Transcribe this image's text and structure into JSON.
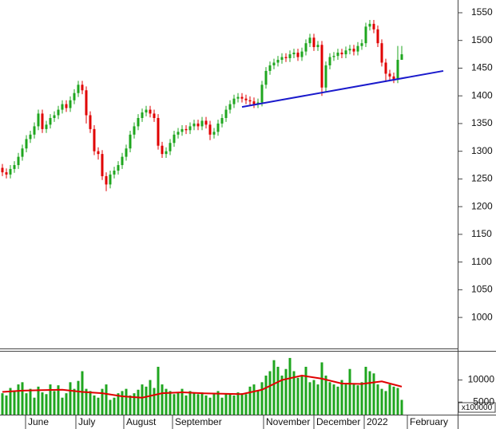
{
  "chart_data": [
    {
      "type": "candlestick",
      "open": [
        1270,
        1262,
        1258,
        1268,
        1275,
        1290,
        1305,
        1322,
        1330,
        1345,
        1368,
        1340,
        1348,
        1360,
        1365,
        1375,
        1385,
        1378,
        1392,
        1405,
        1420,
        1410,
        1365,
        1340,
        1300,
        1295,
        1255,
        1240,
        1258,
        1265,
        1275,
        1290,
        1305,
        1330,
        1345,
        1360,
        1370,
        1375,
        1368,
        1360,
        1310,
        1295,
        1300,
        1315,
        1330,
        1335,
        1340,
        1338,
        1345,
        1350,
        1345,
        1355,
        1348,
        1330,
        1335,
        1350,
        1360,
        1375,
        1385,
        1395,
        1398,
        1395,
        1392,
        1390,
        1385,
        1388,
        1420,
        1445,
        1455,
        1460,
        1465,
        1470,
        1468,
        1475,
        1478,
        1470,
        1480,
        1495,
        1505,
        1488,
        1492,
        1415,
        1455,
        1470,
        1472,
        1478,
        1475,
        1482,
        1485,
        1480,
        1490,
        1495,
        1525,
        1530,
        1520,
        1495,
        1460,
        1440,
        1435,
        1430,
        1465
      ],
      "high": [
        1277,
        1269,
        1275,
        1282,
        1297,
        1312,
        1329,
        1337,
        1352,
        1375,
        1375,
        1355,
        1367,
        1372,
        1382,
        1392,
        1392,
        1399,
        1412,
        1427,
        1427,
        1417,
        1372,
        1347,
        1307,
        1302,
        1262,
        1265,
        1272,
        1282,
        1297,
        1312,
        1337,
        1352,
        1367,
        1377,
        1382,
        1382,
        1375,
        1367,
        1317,
        1307,
        1322,
        1337,
        1342,
        1347,
        1347,
        1352,
        1357,
        1357,
        1362,
        1362,
        1355,
        1342,
        1357,
        1367,
        1382,
        1392,
        1402,
        1405,
        1405,
        1402,
        1399,
        1397,
        1395,
        1427,
        1452,
        1462,
        1467,
        1472,
        1477,
        1477,
        1482,
        1485,
        1485,
        1487,
        1502,
        1512,
        1512,
        1499,
        1499,
        1462,
        1477,
        1479,
        1485,
        1485,
        1489,
        1492,
        1492,
        1497,
        1502,
        1532,
        1537,
        1537,
        1527,
        1502,
        1467,
        1447,
        1442,
        1490,
        1490
      ],
      "low": [
        1255,
        1251,
        1251,
        1261,
        1268,
        1283,
        1298,
        1315,
        1323,
        1338,
        1333,
        1333,
        1341,
        1353,
        1358,
        1368,
        1371,
        1371,
        1385,
        1398,
        1403,
        1350,
        1333,
        1293,
        1285,
        1248,
        1228,
        1233,
        1251,
        1258,
        1268,
        1283,
        1298,
        1323,
        1338,
        1353,
        1363,
        1361,
        1353,
        1303,
        1288,
        1288,
        1293,
        1308,
        1323,
        1328,
        1331,
        1331,
        1338,
        1338,
        1338,
        1341,
        1320,
        1323,
        1328,
        1343,
        1353,
        1368,
        1378,
        1388,
        1388,
        1385,
        1383,
        1378,
        1378,
        1381,
        1413,
        1438,
        1448,
        1453,
        1458,
        1461,
        1461,
        1468,
        1463,
        1463,
        1473,
        1488,
        1481,
        1481,
        1400,
        1408,
        1448,
        1463,
        1465,
        1468,
        1468,
        1475,
        1473,
        1473,
        1483,
        1488,
        1518,
        1513,
        1488,
        1453,
        1425,
        1428,
        1423,
        1423,
        1468
      ],
      "close": [
        1262,
        1258,
        1268,
        1275,
        1290,
        1305,
        1322,
        1330,
        1345,
        1368,
        1340,
        1348,
        1360,
        1365,
        1375,
        1385,
        1378,
        1392,
        1405,
        1420,
        1410,
        1365,
        1340,
        1300,
        1295,
        1255,
        1240,
        1258,
        1265,
        1275,
        1290,
        1305,
        1330,
        1345,
        1360,
        1370,
        1375,
        1368,
        1360,
        1310,
        1295,
        1300,
        1315,
        1330,
        1335,
        1340,
        1338,
        1345,
        1350,
        1345,
        1355,
        1348,
        1330,
        1335,
        1350,
        1360,
        1375,
        1385,
        1395,
        1398,
        1395,
        1392,
        1390,
        1385,
        1388,
        1420,
        1445,
        1455,
        1460,
        1465,
        1470,
        1468,
        1475,
        1478,
        1470,
        1480,
        1495,
        1505,
        1488,
        1492,
        1415,
        1455,
        1470,
        1472,
        1478,
        1475,
        1482,
        1485,
        1480,
        1490,
        1495,
        1525,
        1530,
        1520,
        1495,
        1460,
        1440,
        1435,
        1430,
        1465,
        1475
      ],
      "up_color": "#1fa61f",
      "down_color": "#e00000",
      "ylim": [
        944,
        1573
      ],
      "yticks": [
        1000,
        1050,
        1100,
        1150,
        1200,
        1250,
        1300,
        1350,
        1400,
        1450,
        1500,
        1550
      ],
      "trendline": {
        "x": [
          60,
          110.4
        ],
        "y": [
          1380,
          1445
        ],
        "color": "#1a1acc"
      }
    },
    {
      "type": "bar",
      "values": [
        7000,
        6500,
        8200,
        7500,
        9000,
        9500,
        7000,
        8000,
        6000,
        8500,
        7200,
        6800,
        9000,
        7500,
        8800,
        6000,
        7000,
        9500,
        8000,
        9800,
        12000,
        8000,
        7500,
        6500,
        6000,
        8000,
        9000,
        5500,
        6000,
        7000,
        7500,
        8000,
        6500,
        7000,
        7800,
        9000,
        8500,
        10000,
        8200,
        13000,
        9000,
        8000,
        7500,
        6800,
        7200,
        8000,
        6500,
        7500,
        7000,
        6800,
        7200,
        6500,
        6000,
        7000,
        7500,
        6000,
        6800,
        7000,
        6500,
        7200,
        7000,
        6800,
        8500,
        9000,
        7500,
        9500,
        11000,
        12000,
        14500,
        13000,
        11000,
        12500,
        15000,
        12000,
        10500,
        11000,
        13000,
        9500,
        10000,
        9000,
        14000,
        11000,
        9500,
        9000,
        8500,
        10000,
        9000,
        12500,
        9000,
        8800,
        9500,
        13000,
        12000,
        11500,
        9000,
        8000,
        7500,
        9000,
        8500,
        8200,
        5500
      ],
      "color": "#1fa61f",
      "ma": {
        "x": [
          0,
          5,
          10,
          15,
          20,
          25,
          30,
          35,
          40,
          45,
          50,
          55,
          60,
          65,
          70,
          75,
          80,
          85,
          90,
          95,
          100
        ],
        "values": [
          7300,
          7600,
          7700,
          7800,
          7300,
          7000,
          6300,
          6000,
          7000,
          7200,
          7000,
          6900,
          6800,
          7800,
          10000,
          11000,
          10300,
          9200,
          9100,
          9700,
          8500
        ],
        "color": "#e00000"
      },
      "ylim": [
        2150,
        16430
      ],
      "yticks": [
        5000,
        10000
      ],
      "unit_label": "x100000",
      "xticks": [
        {
          "value": 5.8,
          "label": "June"
        },
        {
          "value": 18.4,
          "label": "July"
        },
        {
          "value": 30.4,
          "label": "August"
        },
        {
          "value": 42.6,
          "label": "September"
        },
        {
          "value": 65.4,
          "label": "November"
        },
        {
          "value": 78,
          "label": "December"
        },
        {
          "value": 90.6,
          "label": "2022"
        },
        {
          "value": 101.4,
          "label": "February"
        }
      ]
    }
  ]
}
